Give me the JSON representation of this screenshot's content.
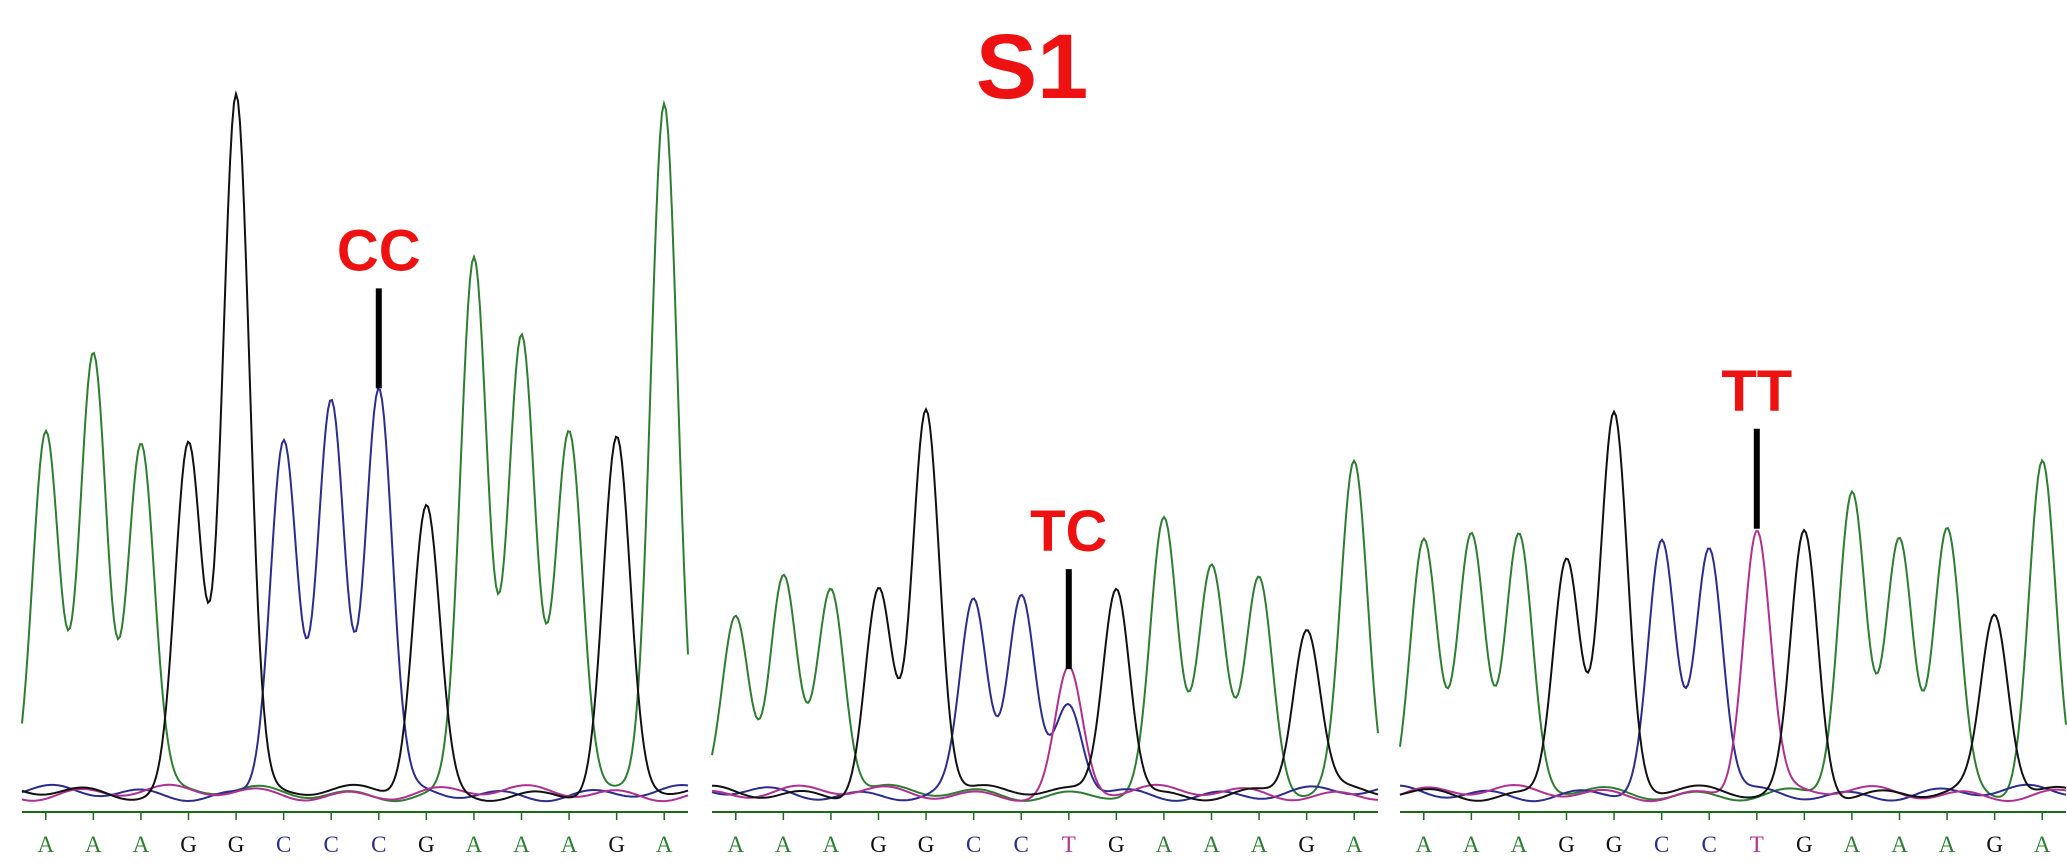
{
  "figure": {
    "title": "S1",
    "colors": {
      "A": "#2e7d32",
      "G": "#111111",
      "C": "#2c2c8c",
      "T": "#b03090",
      "label": "#ee1111",
      "marker": "#000000",
      "axis": "#1a6b1a"
    },
    "panels": [
      {
        "bases": [
          "A",
          "A",
          "A",
          "G",
          "G",
          "C",
          "C",
          "C",
          "G",
          "A",
          "A",
          "A",
          "G",
          "A"
        ],
        "callout": {
          "label": "CC",
          "base_index": 7
        },
        "peak_heights": [
          0.63,
          0.75,
          0.6,
          0.6,
          1.2,
          0.61,
          0.66,
          0.69,
          0.49,
          0.92,
          0.77,
          0.62,
          0.6,
          1.19
        ]
      },
      {
        "bases": [
          "A",
          "A",
          "A",
          "G",
          "G",
          "C",
          "C",
          "T",
          "G",
          "A",
          "A",
          "A",
          "G",
          "A"
        ],
        "callout": {
          "label": "TC",
          "base_index": 7
        },
        "peak_heights": [
          0.31,
          0.37,
          0.35,
          0.35,
          0.66,
          0.33,
          0.33,
          0.21,
          0.36,
          0.46,
          0.39,
          0.36,
          0.28,
          0.57
        ],
        "secondary_peak": {
          "base": "C",
          "base_index": 7,
          "height": 0.15
        }
      },
      {
        "bases": [
          "A",
          "A",
          "A",
          "G",
          "G",
          "C",
          "C",
          "T",
          "G",
          "A",
          "A",
          "A",
          "G",
          "A"
        ],
        "callout": {
          "label": "TT",
          "base_index": 7
        },
        "peak_heights": [
          0.43,
          0.45,
          0.43,
          0.41,
          0.64,
          0.42,
          0.42,
          0.45,
          0.45,
          0.51,
          0.43,
          0.45,
          0.3,
          0.57
        ]
      }
    ]
  }
}
